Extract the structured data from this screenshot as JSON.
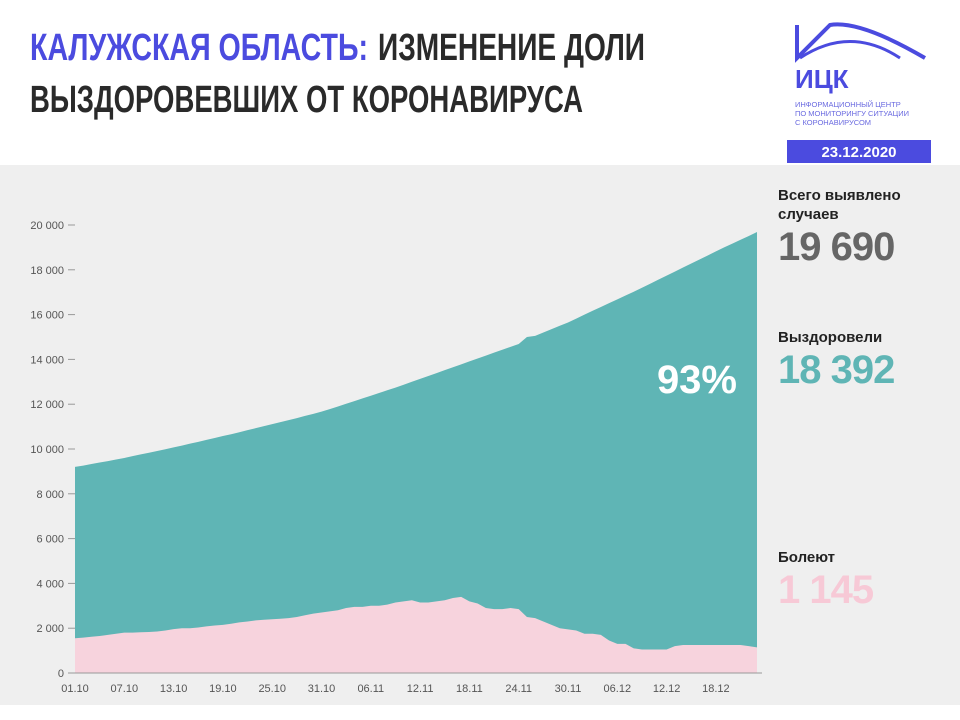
{
  "header": {
    "title_highlight": "КАЛУЖСКАЯ ОБЛАСТЬ:",
    "title_rest": "ИЗМЕНЕНИЕ ДОЛИ",
    "title_line2": "ВЫЗДОРОВЕВШИХ ОТ КОРОНАВИРУСА",
    "logo": "ИЦК",
    "logo_lines": [
      "ИНФОРМАЦИОННЫЙ ЦЕНТР",
      "ПО МОНИТОРИНГУ СИТУАЦИИ",
      "С КОРОНАВИРУСОМ"
    ],
    "date": "23.12.2020"
  },
  "summary": [
    {
      "label": "Всего выявлено случаев",
      "value_label": "19 690",
      "color": "#666666"
    },
    {
      "label": "Выздоровели",
      "value_label": "18 392",
      "color": "#5fb5b5"
    },
    {
      "label": "Болеют",
      "value_label": "1 145",
      "color": "#f7c9d6"
    }
  ],
  "chart_data": {
    "type": "area",
    "annotation": "93%",
    "categories": [
      "01.10",
      null,
      null,
      null,
      null,
      null,
      "07.10",
      null,
      null,
      null,
      null,
      null,
      "13.10",
      null,
      null,
      null,
      null,
      null,
      "19.10",
      null,
      null,
      null,
      null,
      null,
      "25.10",
      null,
      null,
      null,
      null,
      null,
      "31.10",
      null,
      null,
      null,
      null,
      null,
      "06.11",
      null,
      null,
      null,
      null,
      null,
      "12.11",
      null,
      null,
      null,
      null,
      null,
      "18.11",
      null,
      null,
      null,
      null,
      null,
      "24.11",
      null,
      null,
      null,
      null,
      null,
      "30.11",
      null,
      null,
      null,
      null,
      null,
      "06.12",
      null,
      null,
      null,
      null,
      null,
      "12.12",
      null,
      null,
      null,
      null,
      null,
      "18.12",
      null,
      null,
      null,
      null,
      null
    ],
    "series": [
      {
        "color": "#5fb5b5",
        "values": [
          9200,
          9260,
          9330,
          9400,
          9460,
          9530,
          9600,
          9680,
          9760,
          9830,
          9910,
          9990,
          10070,
          10150,
          10240,
          10320,
          10410,
          10490,
          10580,
          10660,
          10750,
          10840,
          10930,
          11020,
          11110,
          11200,
          11290,
          11380,
          11480,
          11570,
          11670,
          11780,
          11900,
          12020,
          12140,
          12260,
          12380,
          12500,
          12620,
          12740,
          12870,
          13000,
          13130,
          13260,
          13390,
          13520,
          13650,
          13780,
          13910,
          14040,
          14170,
          14300,
          14430,
          14560,
          14690,
          15000,
          15050,
          15200,
          15350,
          15500,
          15650,
          15820,
          16000,
          16170,
          16340,
          16510,
          16680,
          16850,
          17020,
          17200,
          17380,
          17560,
          17740,
          17920,
          18100,
          18280,
          18460,
          18640,
          18820,
          19000,
          19170,
          19340,
          19510,
          19690
        ]
      },
      {
        "color": "#f7d3dd",
        "values": [
          1550,
          1580,
          1620,
          1650,
          1700,
          1750,
          1800,
          1800,
          1820,
          1830,
          1850,
          1900,
          1960,
          2000,
          2000,
          2030,
          2080,
          2120,
          2150,
          2200,
          2260,
          2300,
          2350,
          2380,
          2400,
          2420,
          2450,
          2500,
          2580,
          2650,
          2700,
          2750,
          2800,
          2900,
          2950,
          2950,
          3000,
          3000,
          3050,
          3150,
          3200,
          3250,
          3150,
          3150,
          3200,
          3250,
          3350,
          3400,
          3200,
          3100,
          2900,
          2850,
          2850,
          2900,
          2850,
          2500,
          2450,
          2300,
          2150,
          2000,
          1950,
          1900,
          1750,
          1750,
          1700,
          1450,
          1300,
          1300,
          1100,
          1050,
          1050,
          1050,
          1050,
          1200,
          1250,
          1250,
          1250,
          1250,
          1250,
          1250,
          1250,
          1250,
          1200,
          1145
        ]
      }
    ],
    "ylim": [
      0,
      20000
    ],
    "yticks": [
      0,
      {
        "value": 2000,
        "label": "2 000"
      },
      {
        "value": 4000,
        "label": "4 000"
      },
      {
        "value": 6000,
        "label": "6 000"
      },
      {
        "value": 8000,
        "label": "8 000"
      },
      {
        "value": 10000,
        "label": "10 000"
      },
      {
        "value": 12000,
        "label": "12 000"
      },
      {
        "value": 14000,
        "label": "14 000"
      },
      {
        "value": 16000,
        "label": "16 000"
      },
      {
        "value": 18000,
        "label": "18 000"
      },
      {
        "value": 20000,
        "label": "20 000"
      }
    ]
  }
}
